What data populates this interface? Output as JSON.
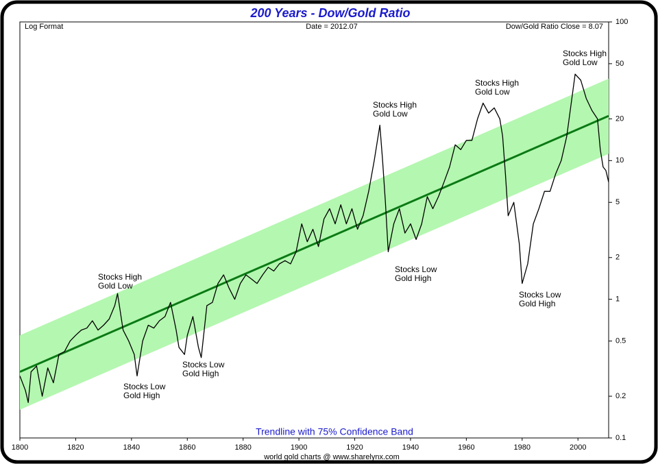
{
  "chart_data": {
    "type": "line",
    "title": "200 Years - Dow/Gold Ratio",
    "header_left": "Log Format",
    "header_center": "Date = 2012.07",
    "header_right": "Dow/Gold Ratio Close = 8.07",
    "footer": "world gold charts @ www.sharelynx.com",
    "log_y": true,
    "xlim": [
      1800,
      2011
    ],
    "ylim": [
      0.1,
      100
    ],
    "xticks": [
      1800,
      1820,
      1840,
      1860,
      1880,
      1900,
      1920,
      1940,
      1960,
      1980,
      2000
    ],
    "yticks": [
      0.1,
      0.2,
      0.5,
      1,
      2,
      5,
      10,
      20,
      50,
      100
    ],
    "band": {
      "name": "Trendline with 75% Confidence Band",
      "color": "#b4f7b0",
      "x": [
        1800,
        2011
      ],
      "upper": [
        0.55,
        39
      ],
      "lower": [
        0.16,
        11.2
      ]
    },
    "trend": {
      "color": "#0a7a14",
      "x": [
        1800,
        2011
      ],
      "values": [
        0.3,
        21
      ]
    },
    "series": [
      {
        "color": "#000000",
        "x": [
          1800,
          1802,
          1803,
          1804,
          1806,
          1808,
          1810,
          1812,
          1814,
          1816,
          1818,
          1820,
          1822,
          1824,
          1826,
          1828,
          1830,
          1832,
          1834,
          1835,
          1837,
          1839,
          1841,
          1842,
          1844,
          1846,
          1848,
          1850,
          1852,
          1854,
          1856,
          1857,
          1859,
          1860,
          1862,
          1864,
          1865,
          1867,
          1869,
          1871,
          1873,
          1875,
          1877,
          1879,
          1881,
          1883,
          1885,
          1887,
          1889,
          1891,
          1893,
          1895,
          1897,
          1899,
          1901,
          1903,
          1905,
          1907,
          1909,
          1911,
          1913,
          1915,
          1917,
          1919,
          1921,
          1923,
          1925,
          1927,
          1929,
          1930,
          1931,
          1932,
          1934,
          1936,
          1938,
          1940,
          1942,
          1944,
          1946,
          1948,
          1950,
          1952,
          1954,
          1956,
          1958,
          1960,
          1962,
          1964,
          1966,
          1968,
          1970,
          1972,
          1973,
          1974,
          1975,
          1977,
          1979,
          1980,
          1982,
          1984,
          1986,
          1988,
          1990,
          1992,
          1994,
          1996,
          1998,
          1999,
          2001,
          2003,
          2005,
          2007,
          2008,
          2009,
          2010,
          2011
        ],
        "values": [
          0.28,
          0.22,
          0.18,
          0.3,
          0.33,
          0.2,
          0.32,
          0.25,
          0.4,
          0.42,
          0.5,
          0.55,
          0.6,
          0.62,
          0.7,
          0.6,
          0.65,
          0.72,
          0.9,
          1.1,
          0.6,
          0.5,
          0.4,
          0.28,
          0.5,
          0.65,
          0.62,
          0.7,
          0.75,
          0.95,
          0.6,
          0.45,
          0.4,
          0.55,
          0.75,
          0.45,
          0.38,
          0.9,
          0.95,
          1.3,
          1.5,
          1.2,
          1.0,
          1.3,
          1.5,
          1.4,
          1.3,
          1.5,
          1.7,
          1.6,
          1.8,
          1.9,
          1.8,
          2.2,
          3.5,
          2.6,
          3.2,
          2.4,
          3.8,
          4.5,
          3.5,
          4.8,
          3.5,
          4.5,
          3.2,
          4.0,
          6.0,
          10,
          18,
          10,
          5,
          2.2,
          3.5,
          4.5,
          3.0,
          3.5,
          2.7,
          3.5,
          5.5,
          4.5,
          5.5,
          7,
          9,
          13,
          12,
          14,
          14,
          20,
          26,
          22,
          24,
          20,
          15,
          8,
          4,
          5,
          2.5,
          1.3,
          1.8,
          3.5,
          4.5,
          6,
          6,
          8,
          10,
          15,
          30,
          42,
          38,
          28,
          23,
          20,
          12,
          9,
          8.5,
          7
        ]
      }
    ],
    "annotations": [
      [
        "Stocks High",
        "Gold Low"
      ],
      [
        "Stocks Low",
        "Gold High"
      ],
      [
        "Stocks Low",
        "Gold High"
      ],
      [
        "Stocks High",
        "Gold Low"
      ],
      [
        "Stocks Low",
        "Gold High"
      ],
      [
        "Stocks High",
        "Gold Low"
      ],
      [
        "Stocks Low",
        "Gold High"
      ],
      [
        "Stocks High",
        "Gold Low"
      ]
    ]
  }
}
